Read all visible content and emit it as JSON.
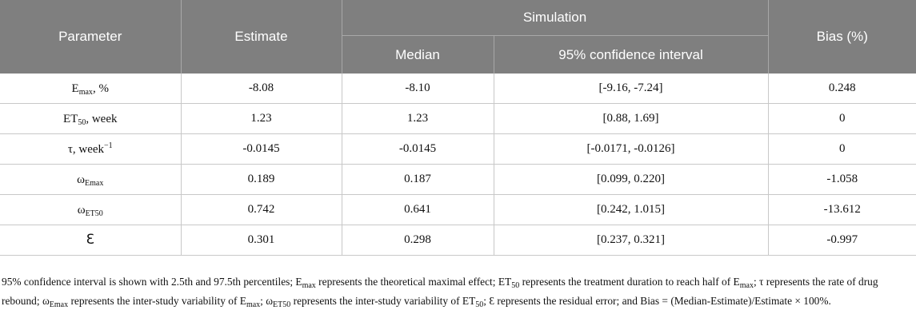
{
  "header": {
    "parameter": "Parameter",
    "estimate": "Estimate",
    "simulation": "Simulation",
    "bias": "Bias (%)",
    "median": "Median",
    "ci": "95% confidence interval"
  },
  "rows": [
    {
      "param_base": "E",
      "param_sub": "max",
      "param_sup": "",
      "param_tail": ", %",
      "estimate": "-8.08",
      "median": "-8.10",
      "ci": "[-9.16, -7.24]",
      "bias": "0.248"
    },
    {
      "param_base": "ET",
      "param_sub": "50",
      "param_sup": "",
      "param_tail": ", week",
      "estimate": "1.23",
      "median": "1.23",
      "ci": "[0.88, 1.69]",
      "bias": "0"
    },
    {
      "param_base": "τ, week",
      "param_sub": "",
      "param_sup": "−1",
      "param_tail": "",
      "estimate": "-0.0145",
      "median": "-0.0145",
      "ci": "[-0.0171, -0.0126]",
      "bias": "0"
    },
    {
      "param_base": "ω",
      "param_sub": "Emax",
      "param_sup": "",
      "param_tail": "",
      "estimate": "0.189",
      "median": "0.187",
      "ci": "[0.099, 0.220]",
      "bias": "-1.058"
    },
    {
      "param_base": "ω",
      "param_sub": "ET50",
      "param_sup": "",
      "param_tail": "",
      "estimate": "0.742",
      "median": "0.641",
      "ci": "[0.242, 1.015]",
      "bias": "-13.612"
    },
    {
      "param_base": "Ɛ",
      "param_sub": "",
      "param_sup": "",
      "param_tail": "",
      "estimate": "0.301",
      "median": "0.298",
      "ci": "[0.237, 0.321]",
      "bias": "-0.997"
    }
  ],
  "footnote": {
    "t1": "95% confidence interval is shown with 2.5th and 97.5th percentiles; E",
    "s1": "max",
    "t2": " represents the theoretical maximal effect; ET",
    "s2": "50",
    "t3": " represents the treatment duration to reach half of E",
    "s3": "max",
    "t4": "; τ represents the rate of drug rebound; ω",
    "s4": "Emax",
    "t5": " represents the inter-study variability of E",
    "s5": "max",
    "t6": "; ω",
    "s6": "ET50",
    "t7": " represents the inter-study variability of ET",
    "s7": "50",
    "t8": "; Ɛ represents the residual error; and Bias = (Median-Estimate)/Estimate × 100%."
  }
}
